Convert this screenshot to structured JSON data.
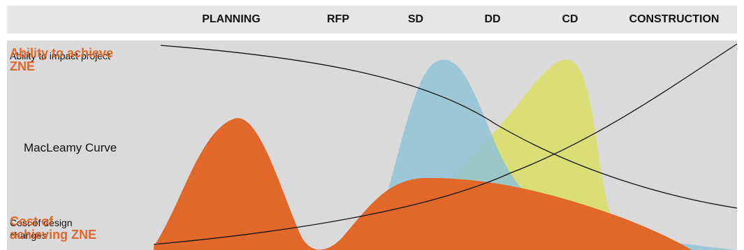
{
  "header": {
    "phases": [
      "PLANNING",
      "RFP",
      "SD",
      "DD",
      "CD",
      "CONSTRUCTION"
    ]
  },
  "labels": {
    "ability_zne": "Ability to achieve ZNE",
    "ability_impact": "Ability to impact project",
    "macleamy": "MacLeamy Curve",
    "cost_design": "Cost of design changes",
    "cost_zne": "Cost of achieving ZNE"
  },
  "colors": {
    "orange": "#e0682b",
    "blue": "#8fc3d6",
    "yellow": "#d9de6a",
    "panel": "#dadada",
    "header": "#e6e6e6"
  }
}
